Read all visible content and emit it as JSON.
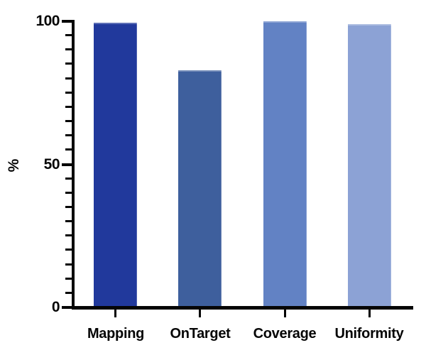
{
  "chart_data": {
    "type": "bar",
    "title": "",
    "xlabel": "",
    "ylabel": "%",
    "categories": [
      "Mapping",
      "OnTarget",
      "Coverage",
      "Uniformity"
    ],
    "values": [
      99.5,
      83,
      100,
      99
    ],
    "bar_colors": [
      "#21399c",
      "#3e5f9d",
      "#6282c4",
      "#8ca2d5"
    ],
    "ylim": [
      0,
      100
    ],
    "yticks_major": [
      0,
      50,
      100
    ],
    "ytick_labels": [
      "0",
      "50",
      "100"
    ],
    "ytick_minor_step": 5,
    "grid": false,
    "legend": false,
    "axis_color": "#050505",
    "background_color": "#ffffff"
  }
}
